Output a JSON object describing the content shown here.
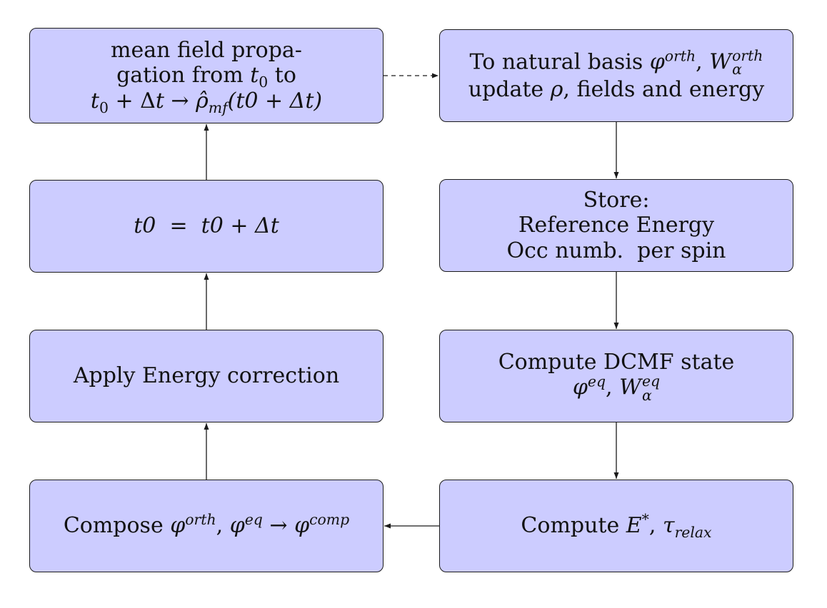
{
  "colors": {
    "box_fill": "#ccccff",
    "box_stroke": "#1a1a1a",
    "arrow": "#1a1a1a"
  },
  "boxes": {
    "mean_field": {
      "line1": "mean field propa-",
      "line2_text": "gation from ",
      "line2_var": "t",
      "line2_sub": "0",
      "line2_end": " to",
      "line3_t": "t",
      "line3_sub": "0",
      "line3_mid": " + Δ",
      "line3_dt": "t",
      "line3_arrow": " → ",
      "line3_rho": "ρ̂",
      "line3_rho_sub": "mf",
      "line3_arg": "(t0 + Δt)"
    },
    "time_update": {
      "text": "t0  =  t0 + Δt"
    },
    "energy_correction": {
      "text": "Apply Energy correction"
    },
    "compose": {
      "prefix": "Compose ",
      "phi1": "φ",
      "phi1_sup": "orth",
      "comma": ", ",
      "phi2": "φ",
      "phi2_sup": "eq",
      "arrow": " → ",
      "phi3": "φ",
      "phi3_sup": "comp"
    },
    "natural_basis": {
      "line1_text": "To natural basis ",
      "line1_phi": "φ",
      "line1_phi_sup": "orth",
      "line1_comma": ", ",
      "line1_w": "W",
      "line1_w_sup": "orth",
      "line1_w_sub": "α",
      "line2_text1": "update ",
      "line2_rho": "ρ",
      "line2_text2": ", fields and energy"
    },
    "store": {
      "line1": "Store:",
      "line2": "Reference Energy",
      "line3": "Occ numb.  per spin"
    },
    "dcmf": {
      "line1": "Compute DCMF state",
      "line2_phi": "φ",
      "line2_phi_sup": "eq",
      "line2_comma": ", ",
      "line2_w": "W",
      "line2_w_sup": "eq",
      "line2_w_sub": "α"
    },
    "compute_e": {
      "prefix": "Compute ",
      "e": "E",
      "e_sup": "*",
      "comma": ", ",
      "tau": "τ",
      "tau_sub": "relax"
    }
  }
}
